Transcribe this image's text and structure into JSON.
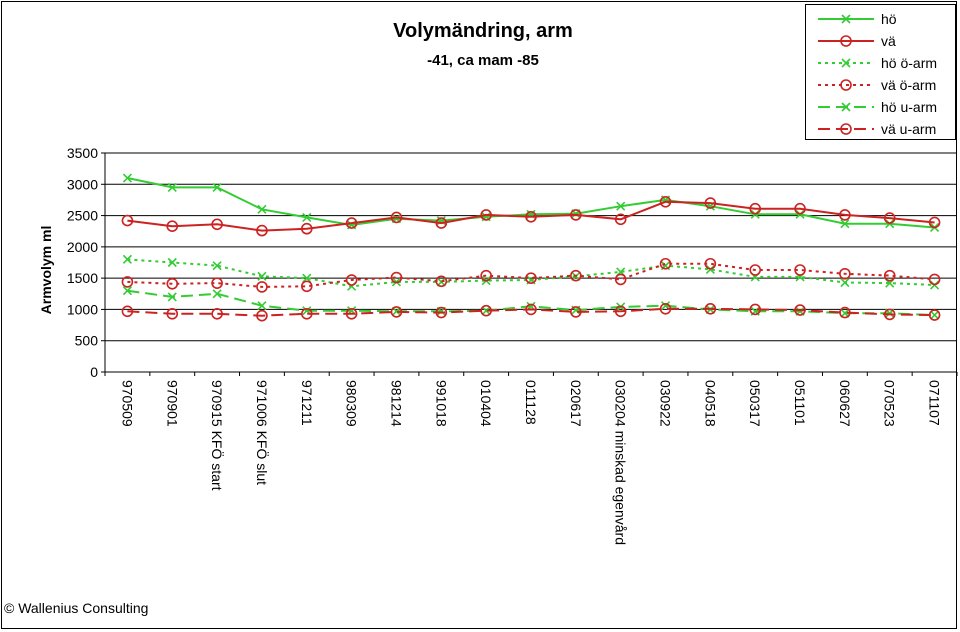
{
  "footer": {
    "copyright": "© Wallenius Consulting"
  },
  "chart_data": {
    "type": "line",
    "title": "Volymändring, arm",
    "subtitle": "-41, ca mam -85",
    "ylabel": "Armvolym ml",
    "xlabel": "",
    "ylim": [
      0,
      3500
    ],
    "yticks": [
      0,
      500,
      1000,
      1500,
      2000,
      2500,
      3000,
      3500
    ],
    "grid": true,
    "legend_position": "top-right",
    "categories": [
      "970509",
      "970901",
      "970915 KFÖ start",
      "971006 KFÖ slut",
      "971211",
      "980309",
      "981214",
      "991018",
      "010404",
      "011128",
      "020617",
      "030204 minskad egenvård",
      "030922",
      "040518",
      "050317",
      "051101",
      "060627",
      "070523",
      "071107"
    ],
    "series": [
      {
        "name": "hö",
        "color": "#33cc33",
        "marker": "x",
        "dash": "solid",
        "values": [
          3100,
          2950,
          2950,
          2600,
          2470,
          2350,
          2450,
          2420,
          2480,
          2520,
          2530,
          2650,
          2750,
          2650,
          2520,
          2520,
          2370,
          2370,
          2310
        ]
      },
      {
        "name": "vä",
        "color": "#cc2222",
        "marker": "o",
        "dash": "solid",
        "values": [
          2420,
          2330,
          2360,
          2260,
          2290,
          2380,
          2470,
          2380,
          2510,
          2480,
          2510,
          2440,
          2720,
          2700,
          2610,
          2610,
          2510,
          2460,
          2390
        ]
      },
      {
        "name": "hö ö-arm",
        "color": "#33cc33",
        "marker": "x",
        "dash": "dot",
        "values": [
          1800,
          1750,
          1700,
          1530,
          1500,
          1370,
          1440,
          1440,
          1460,
          1470,
          1530,
          1600,
          1700,
          1640,
          1520,
          1520,
          1430,
          1420,
          1390
        ]
      },
      {
        "name": "vä ö-arm",
        "color": "#cc2222",
        "marker": "o",
        "dash": "dot",
        "values": [
          1440,
          1410,
          1420,
          1360,
          1370,
          1470,
          1510,
          1450,
          1540,
          1500,
          1540,
          1480,
          1730,
          1730,
          1630,
          1630,
          1570,
          1540,
          1480
        ]
      },
      {
        "name": "hö u-arm",
        "color": "#33cc33",
        "marker": "x",
        "dash": "dash",
        "values": [
          1300,
          1200,
          1250,
          1060,
          980,
          980,
          970,
          970,
          980,
          1050,
          990,
          1040,
          1060,
          1000,
          970,
          970,
          940,
          940,
          910
        ]
      },
      {
        "name": "vä u-arm",
        "color": "#cc2222",
        "marker": "o",
        "dash": "dash",
        "values": [
          970,
          930,
          930,
          900,
          930,
          930,
          960,
          950,
          980,
          1000,
          960,
          970,
          1010,
          1010,
          1000,
          990,
          950,
          920,
          910
        ]
      }
    ]
  }
}
